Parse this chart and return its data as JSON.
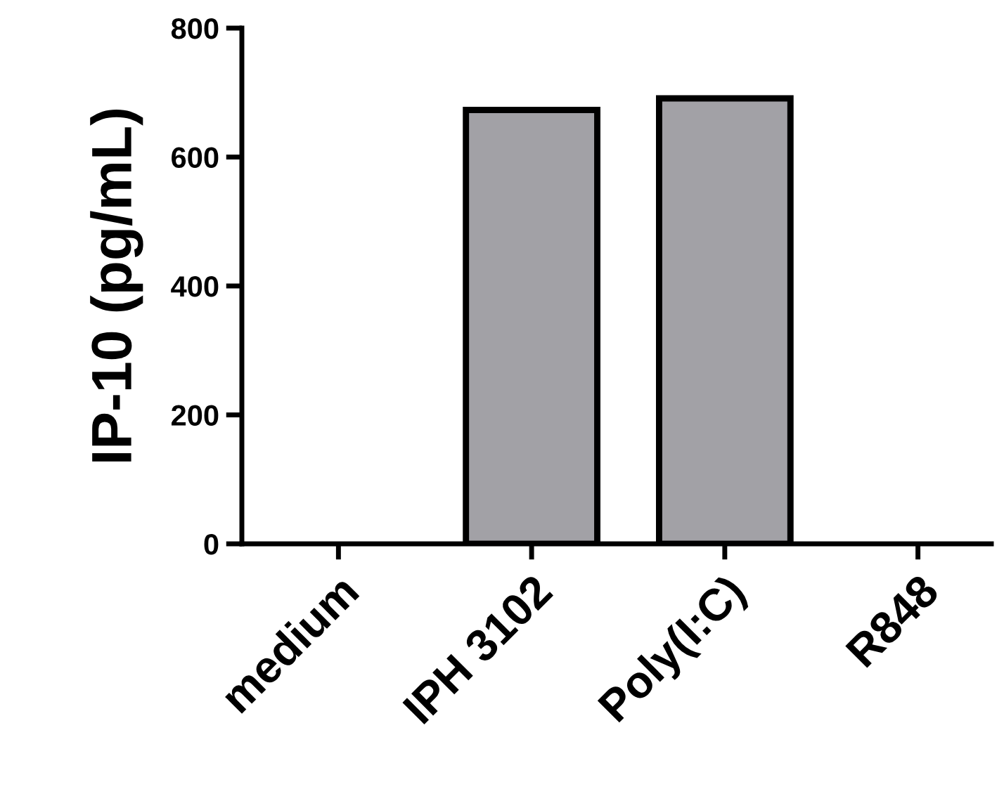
{
  "chart_data": {
    "type": "bar",
    "ylabel": "IP-10 (pg/mL)",
    "categories": [
      "medium",
      "IPH 3102",
      "Poly(I:C)",
      "R848"
    ],
    "values": [
      0,
      673,
      691,
      0
    ],
    "color": "#a2a1a6",
    "ylim": [
      0,
      800
    ],
    "yticks": [
      0,
      200,
      400,
      600,
      800
    ],
    "grid": false
  }
}
